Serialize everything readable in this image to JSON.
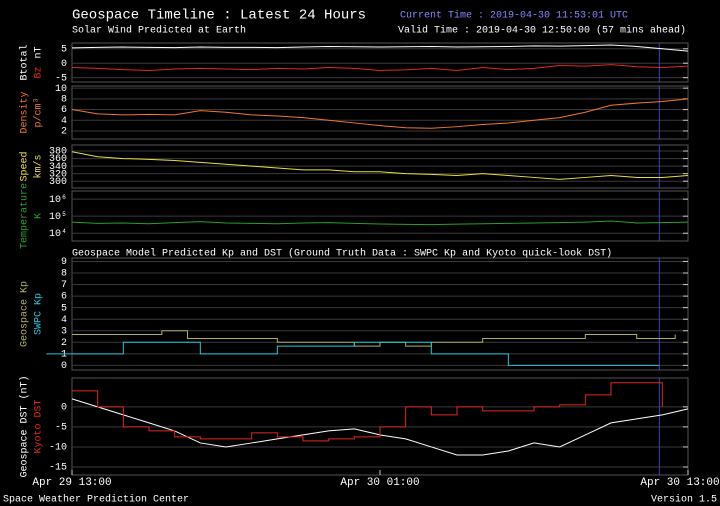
{
  "header": {
    "title": "Geospace Timeline : Latest 24 Hours",
    "current_time": "Current Time : 2019-04-30 11:53:01 UTC",
    "valid_time": "Valid Time : 2019-04-30 12:50:00 (57 mins ahead)",
    "solar_wind_title": "Solar Wind Predicted at Earth",
    "geospace_title": "Geospace Model Predicted Kp and DST (Ground Truth Data : SWPC Kp and Kyoto quick-look DST)"
  },
  "footer": {
    "left": "Space Weather Prediction Center",
    "right": "Version 1.5"
  },
  "current_time_hours": 22.883,
  "chart_data": [
    {
      "type": "line",
      "ylim": [
        -6.5,
        7
      ],
      "yticks": [
        5,
        0,
        -5
      ],
      "unit": "nT",
      "unit_color": "#ffffff",
      "x": [
        0,
        1,
        2,
        3,
        4,
        5,
        6,
        7,
        8,
        9,
        10,
        11,
        12,
        13,
        14,
        15,
        16,
        17,
        18,
        19,
        20,
        21,
        22,
        23,
        24
      ],
      "series": [
        {
          "name": "Btotal",
          "color": "#ffffff",
          "values": [
            5.3,
            5.5,
            5.6,
            5.5,
            5.4,
            5.6,
            5.5,
            5.5,
            5.4,
            5.6,
            5.8,
            5.7,
            5.6,
            5.7,
            5.8,
            5.6,
            5.7,
            5.8,
            6.0,
            5.9,
            6.1,
            6.3,
            5.8,
            5.0,
            4.2
          ]
        },
        {
          "name": "Bz",
          "color": "#e0281e",
          "values": [
            -1.5,
            -1.8,
            -2.2,
            -2.5,
            -2.0,
            -1.8,
            -2.0,
            -2.2,
            -1.8,
            -2.0,
            -1.5,
            -1.8,
            -2.5,
            -2.3,
            -1.8,
            -2.5,
            -1.5,
            -2.2,
            -1.8,
            -0.8,
            -1.0,
            -0.5,
            -1.2,
            -1.5,
            -1.0
          ]
        }
      ]
    },
    {
      "type": "line",
      "ylim": [
        0.5,
        10.4
      ],
      "yticks": [
        2,
        4,
        6,
        8,
        10
      ],
      "unit": "p/cm³",
      "unit_color": "#f07828",
      "x": [
        0,
        1,
        2,
        3,
        4,
        5,
        6,
        7,
        8,
        9,
        10,
        11,
        12,
        13,
        14,
        15,
        16,
        17,
        18,
        19,
        20,
        21,
        22,
        23,
        24
      ],
      "series": [
        {
          "name": "Density",
          "color": "#f07828",
          "values": [
            6.0,
            5.2,
            5.0,
            5.1,
            5.0,
            5.8,
            5.5,
            5.0,
            4.8,
            4.5,
            4.0,
            3.5,
            3.0,
            2.6,
            2.5,
            2.8,
            3.2,
            3.5,
            4.0,
            4.5,
            5.5,
            6.8,
            7.2,
            7.5,
            8.0
          ]
        }
      ]
    },
    {
      "type": "line",
      "ylim": [
        282,
        396
      ],
      "yticks": [
        300,
        320,
        340,
        360,
        380
      ],
      "unit": "km/s",
      "unit_color": "#e8e040",
      "x": [
        0,
        1,
        2,
        3,
        4,
        5,
        6,
        7,
        8,
        9,
        10,
        11,
        12,
        13,
        14,
        15,
        16,
        17,
        18,
        19,
        20,
        21,
        22,
        23,
        24
      ],
      "series": [
        {
          "name": "Speed",
          "color": "#e8e040",
          "values": [
            378,
            365,
            360,
            358,
            355,
            350,
            345,
            340,
            335,
            330,
            330,
            325,
            325,
            320,
            318,
            315,
            320,
            315,
            310,
            305,
            310,
            315,
            310,
            310,
            315
          ]
        }
      ]
    },
    {
      "type": "line",
      "log": true,
      "ylim": [
        3500,
        3000000
      ],
      "yticks": [
        {
          "value": 10000,
          "label": "10⁴"
        },
        {
          "value": 100000,
          "label": "10⁵"
        },
        {
          "value": 1000000,
          "label": "10⁶"
        }
      ],
      "unit": "K",
      "unit_color": "#28a028",
      "x": [
        0,
        1,
        2,
        3,
        4,
        5,
        6,
        7,
        8,
        9,
        10,
        11,
        12,
        13,
        14,
        15,
        16,
        17,
        18,
        19,
        20,
        21,
        22,
        23,
        24
      ],
      "series": [
        {
          "name": "Temperature",
          "color": "#28a028",
          "values": [
            45000,
            38000,
            40000,
            36000,
            42000,
            48000,
            40000,
            38000,
            36000,
            40000,
            42000,
            38000,
            35000,
            33000,
            32000,
            34000,
            36000,
            38000,
            40000,
            42000,
            45000,
            52000,
            40000,
            42000,
            45000
          ]
        }
      ]
    },
    {
      "type": "line",
      "ylim": [
        -0.4,
        9.3
      ],
      "yticks": [
        0,
        1,
        2,
        3,
        4,
        5,
        6,
        7,
        8,
        9
      ],
      "series": [
        {
          "name": "Geospace Kp",
          "color": "#b0b060",
          "step": true,
          "x": [
            0,
            3,
            3.5,
            4.5,
            6,
            8,
            10,
            11,
            12,
            13,
            14,
            16,
            18,
            20,
            22,
            23.5
          ],
          "values": [
            2.67,
            2.67,
            3,
            2.33,
            2.33,
            2,
            2,
            1.67,
            2,
            1.67,
            2,
            2.33,
            2.33,
            2.67,
            2.33,
            2.67
          ]
        },
        {
          "name": "SWPC Kp",
          "color": "#20c8d8",
          "step": true,
          "x": [
            -1,
            2,
            5,
            8,
            11,
            14,
            17,
            22.883
          ],
          "values": [
            1,
            2,
            1,
            1.67,
            2,
            1,
            0,
            0
          ]
        }
      ]
    },
    {
      "type": "line",
      "ylim": [
        -17,
        7.2
      ],
      "yticks": [
        0,
        -5,
        -10,
        -15
      ],
      "xlim": [
        0,
        24
      ],
      "xticks": [
        {
          "value": 0,
          "label": "Apr 29 13:00"
        },
        {
          "value": 12,
          "label": "Apr 30 01:00"
        },
        {
          "value": 24,
          "label": "Apr 30 13:00"
        }
      ],
      "series": [
        {
          "name": "Geospace DST (nT)",
          "color": "#ffffff",
          "x": [
            0,
            1,
            2,
            3,
            4,
            5,
            6,
            7,
            8,
            9,
            10,
            11,
            12,
            13,
            14,
            15,
            16,
            17,
            18,
            19,
            20,
            21,
            22,
            23,
            24
          ],
          "values": [
            2,
            0,
            -2,
            -4,
            -6,
            -9,
            -10,
            -9,
            -8,
            -7,
            -6,
            -5.5,
            -7,
            -8,
            -10,
            -12,
            -12,
            -11,
            -9,
            -10,
            -7,
            -4,
            -3,
            -2,
            -0.5
          ]
        },
        {
          "name": "Kyoto DST",
          "color": "#e0281e",
          "step": true,
          "x": [
            0,
            1,
            2,
            3,
            4,
            5,
            6,
            7,
            8,
            9,
            10,
            11,
            12,
            13,
            14,
            15,
            16,
            17,
            18,
            19,
            20,
            21,
            22,
            23
          ],
          "values": [
            4,
            0,
            -5,
            -6,
            -7.5,
            -8,
            -8,
            -6.5,
            -7.5,
            -8.5,
            -8,
            -7.5,
            -5,
            0,
            -2,
            0,
            -1,
            -1,
            0,
            0.5,
            3,
            6,
            6,
            0
          ]
        }
      ]
    }
  ]
}
